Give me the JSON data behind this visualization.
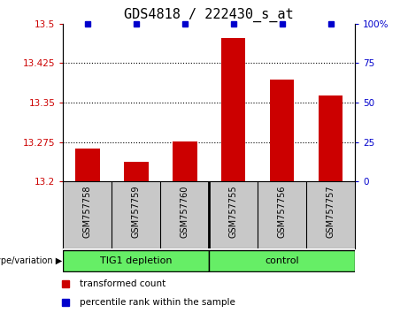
{
  "title": "GDS4818 / 222430_s_at",
  "samples": [
    "GSM757758",
    "GSM757759",
    "GSM757760",
    "GSM757755",
    "GSM757756",
    "GSM757757"
  ],
  "bar_values": [
    13.262,
    13.237,
    13.276,
    13.473,
    13.394,
    13.364
  ],
  "ylim_left": [
    13.2,
    13.5
  ],
  "ylim_right": [
    0,
    100
  ],
  "yticks_left": [
    13.2,
    13.275,
    13.35,
    13.425,
    13.5
  ],
  "yticks_right": [
    0,
    25,
    50,
    75,
    100
  ],
  "ytick_labels_left": [
    "13.2",
    "13.275",
    "13.35",
    "13.425",
    "13.5"
  ],
  "ytick_labels_right": [
    "0",
    "25",
    "50",
    "75",
    "100%"
  ],
  "bar_color": "#cc0000",
  "marker_color": "#0000cc",
  "group1_label": "TIG1 depletion",
  "group2_label": "control",
  "group_label_prefix": "genotype/variation",
  "legend_bar_label": "transformed count",
  "legend_marker_label": "percentile rank within the sample",
  "group_color": "#66ee66",
  "gray_color": "#c8c8c8",
  "bg_color": "#ffffff",
  "title_fontsize": 11,
  "gridline_yticks": [
    13.275,
    13.35,
    13.425
  ]
}
